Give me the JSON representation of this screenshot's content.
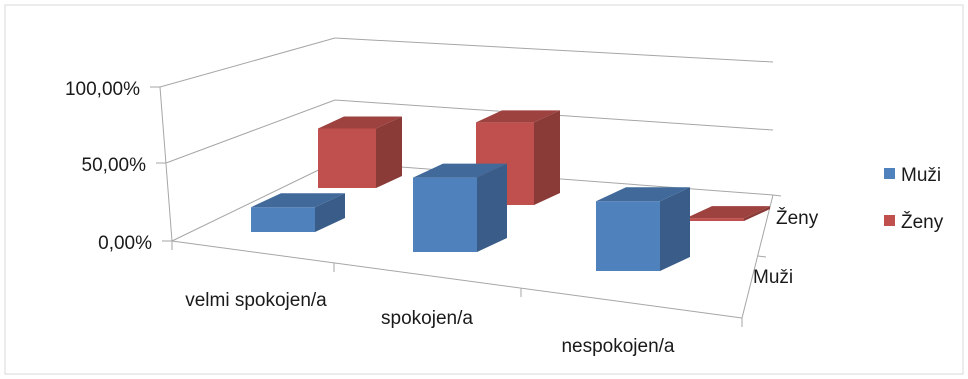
{
  "chart_data": {
    "type": "bar",
    "subtype": "3d-column",
    "categories": [
      "velmi spokojen/a",
      "spokojen/a",
      "nespokojen/a"
    ],
    "series": [
      {
        "name": "Muži",
        "values": [
          16,
          48,
          45
        ],
        "color": "#4f81bd"
      },
      {
        "name": "Ženy",
        "values": [
          41,
          57,
          2
        ],
        "color": "#c0504d"
      }
    ],
    "depth_labels": [
      "Muži",
      "Ženy"
    ],
    "y_ticks": [
      "0,00%",
      "50,00%",
      "100,00%"
    ],
    "ylim": [
      0,
      100
    ],
    "grid": true,
    "legend": "right"
  }
}
